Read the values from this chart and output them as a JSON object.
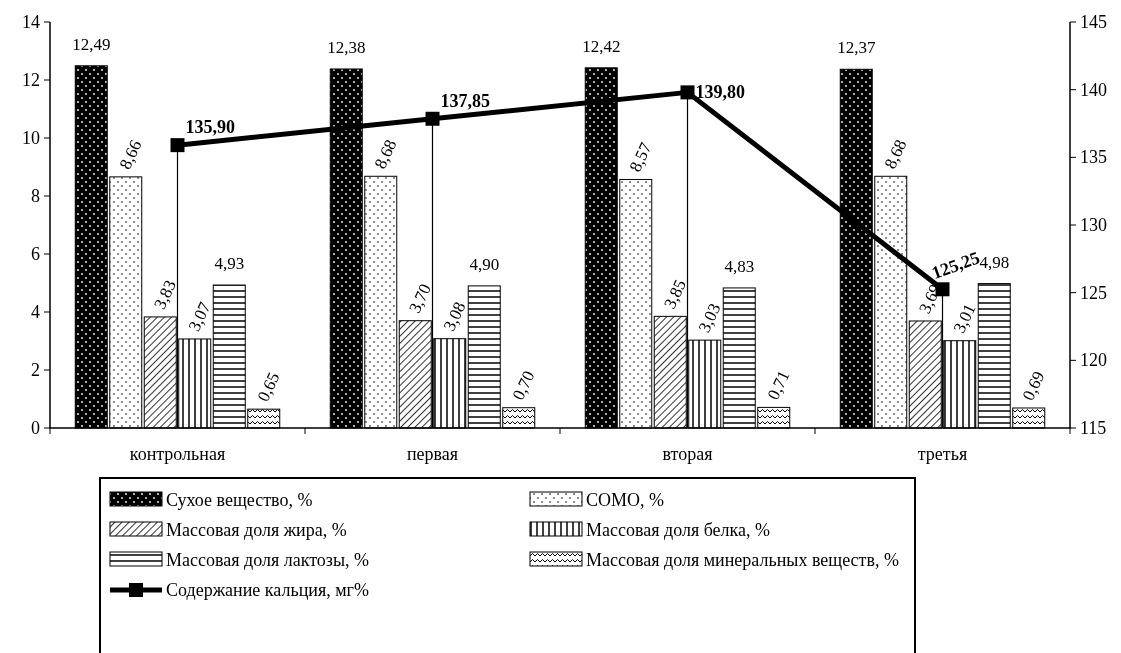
{
  "chart_data": {
    "type": "bar",
    "categories": [
      "контрольная",
      "первая",
      "вторая",
      "третья"
    ],
    "series": [
      {
        "name": "Сухое вещество, %",
        "color": "#000000",
        "values": [
          12.49,
          12.38,
          12.42,
          12.37
        ],
        "value_labels": [
          "12,49",
          "12,38",
          "12,42",
          "12,37"
        ]
      },
      {
        "name": "СОМО, %",
        "color": "#000000",
        "values": [
          8.66,
          8.68,
          8.57,
          8.68
        ],
        "value_labels": [
          "8,66",
          "8,68",
          "8,57",
          "8,68"
        ]
      },
      {
        "name": "Массовая доля жира, %",
        "color": "#000000",
        "values": [
          3.83,
          3.7,
          3.85,
          3.69
        ],
        "value_labels": [
          "3,83",
          "3,70",
          "3,85",
          "3,69"
        ]
      },
      {
        "name": "Массовая доля белка, %",
        "color": "#000000",
        "values": [
          3.07,
          3.08,
          3.03,
          3.01
        ],
        "value_labels": [
          "3,07",
          "3,08",
          "3,03",
          "3,01"
        ]
      },
      {
        "name": "Массовая доля лактозы, %",
        "color": "#000000",
        "values": [
          4.93,
          4.9,
          4.83,
          4.98
        ],
        "value_labels": [
          "4,93",
          "4,90",
          "4,83",
          "4,98"
        ]
      },
      {
        "name": "Массовая доля минеральных веществ, %",
        "color": "#000000",
        "values": [
          0.65,
          0.7,
          0.71,
          0.69
        ],
        "value_labels": [
          "0,65",
          "0,70",
          "0,71",
          "0,69"
        ]
      },
      {
        "name": "Содержание кальция, мг%",
        "type": "line",
        "axis": "y2",
        "color": "#000000",
        "marker": "square",
        "values": [
          135.9,
          137.85,
          139.8,
          125.25
        ],
        "value_labels": [
          "135,90",
          "137,85",
          "139,80",
          "125,25"
        ]
      }
    ],
    "ylim": [
      0,
      14
    ],
    "yticks": [
      0,
      2,
      4,
      6,
      8,
      10,
      12,
      14
    ],
    "y2lim": [
      115,
      145
    ],
    "y2ticks": [
      115,
      120,
      125,
      130,
      135,
      140,
      145
    ],
    "legend": "bottom"
  }
}
